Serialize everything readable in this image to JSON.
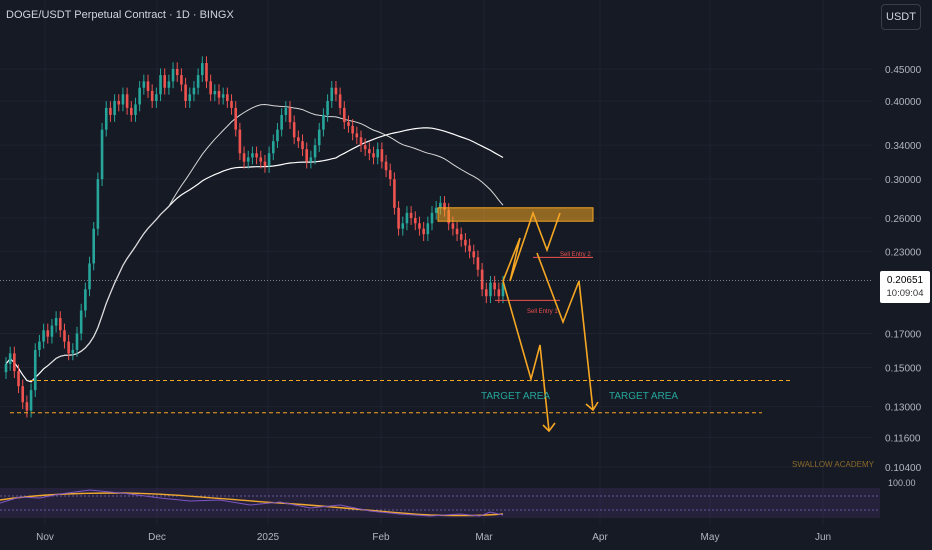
{
  "header": {
    "title": "DOGE/USDT Perpetual Contract · 1D · BINGX"
  },
  "toolbar": {
    "currency_label": "USDT"
  },
  "price_label": {
    "price": "0.20651",
    "countdown": "10:09:04"
  },
  "annotations": {
    "target_area_1": "TARGET AREA",
    "target_area_2": "TARGET AREA",
    "sell_entry_1": "Sell Entry 1",
    "sell_entry_2": "Sell Entry 2",
    "watermark": "SWALLOW ACADEMY"
  },
  "oscillator": {
    "level_label": "100.00"
  },
  "colors": {
    "background": "#161a25",
    "up": "#26a69a",
    "down": "#ef5350",
    "projection": "#f5a623",
    "target_text": "#26a69a",
    "sell_entry": "#ef5350"
  },
  "chart_data": {
    "type": "candlestick",
    "title": "DOGE/USDT Perpetual Contract · 1D · BINGX",
    "scale": "log",
    "y_ticks": [
      0.45,
      0.4,
      0.34,
      0.3,
      0.26,
      0.23,
      0.17,
      0.15,
      0.13,
      0.116,
      0.104
    ],
    "y_tick_labels": [
      "0.45000",
      "0.40000",
      "0.34000",
      "0.30000",
      "0.26000",
      "0.23000",
      "0.17000",
      "0.15000",
      "0.13000",
      "0.11600",
      "0.10400"
    ],
    "x_ticks": [
      "Nov",
      "Dec",
      "2025",
      "Feb",
      "Mar",
      "Apr",
      "May",
      "Jun"
    ],
    "current_price": 0.20651,
    "candles_close": [
      0.152,
      0.158,
      0.148,
      0.14,
      0.132,
      0.128,
      0.138,
      0.16,
      0.165,
      0.172,
      0.168,
      0.175,
      0.18,
      0.172,
      0.165,
      0.158,
      0.16,
      0.17,
      0.185,
      0.2,
      0.22,
      0.25,
      0.3,
      0.36,
      0.39,
      0.38,
      0.4,
      0.395,
      0.41,
      0.39,
      0.38,
      0.395,
      0.42,
      0.43,
      0.415,
      0.4,
      0.41,
      0.44,
      0.42,
      0.43,
      0.45,
      0.44,
      0.425,
      0.4,
      0.41,
      0.42,
      0.44,
      0.46,
      0.43,
      0.41,
      0.415,
      0.405,
      0.41,
      0.4,
      0.39,
      0.36,
      0.33,
      0.32,
      0.325,
      0.33,
      0.325,
      0.32,
      0.315,
      0.33,
      0.345,
      0.36,
      0.38,
      0.39,
      0.37,
      0.35,
      0.345,
      0.335,
      0.32,
      0.325,
      0.34,
      0.36,
      0.38,
      0.4,
      0.42,
      0.41,
      0.39,
      0.37,
      0.365,
      0.355,
      0.35,
      0.34,
      0.335,
      0.33,
      0.325,
      0.335,
      0.32,
      0.31,
      0.3,
      0.27,
      0.25,
      0.255,
      0.265,
      0.26,
      0.255,
      0.25,
      0.245,
      0.255,
      0.265,
      0.27,
      0.275,
      0.268,
      0.255,
      0.25,
      0.245,
      0.24,
      0.235,
      0.23,
      0.225,
      0.215,
      0.2,
      0.195,
      0.205,
      0.2,
      0.195,
      0.205
    ],
    "ma_fast_end": 0.285,
    "ma_slow_end": 0.257,
    "zones": [
      {
        "name": "resistance",
        "y_range": [
          0.257,
          0.27
        ]
      }
    ],
    "levels": [
      {
        "label": "TARGET AREA",
        "value": 0.143
      },
      {
        "label": "TARGET AREA",
        "value": 0.127
      },
      {
        "label": "Sell Entry 2",
        "value": 0.225
      },
      {
        "label": "Sell Entry 1",
        "value": 0.192
      }
    ]
  }
}
